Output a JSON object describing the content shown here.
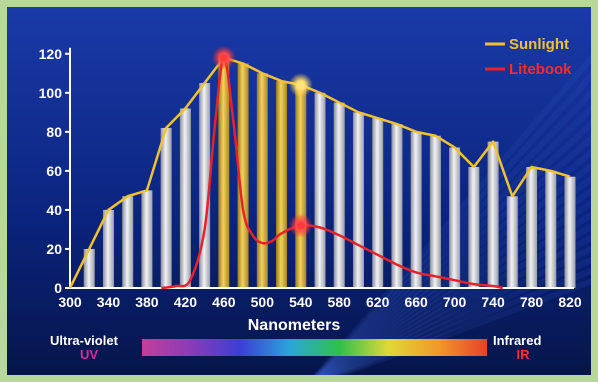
{
  "chart_data": {
    "type": "bar",
    "xlabel": "Nanometers",
    "ylabel": "",
    "ylim": [
      0,
      125
    ],
    "xlim": [
      300,
      820
    ],
    "y_ticks": [
      "0",
      "20",
      "40",
      "60",
      "80",
      "100",
      "120"
    ],
    "x_ticks": [
      "300",
      "340",
      "380",
      "420",
      "460",
      "500",
      "540",
      "580",
      "620",
      "660",
      "700",
      "740",
      "780",
      "820"
    ],
    "categories": [
      320,
      340,
      360,
      380,
      400,
      420,
      440,
      460,
      480,
      500,
      520,
      540,
      560,
      580,
      600,
      620,
      640,
      660,
      680,
      700,
      720,
      740,
      760,
      780,
      800,
      820
    ],
    "highlighted": [
      460,
      480,
      500,
      520,
      540
    ],
    "series": [
      {
        "name": "Sunlight",
        "color": "#f2c12e",
        "kind": "bar_and_line",
        "x": [
          300,
          320,
          340,
          360,
          380,
          400,
          420,
          440,
          460,
          480,
          500,
          520,
          540,
          560,
          580,
          600,
          620,
          640,
          660,
          680,
          700,
          720,
          740,
          760,
          780,
          800,
          820
        ],
        "values": [
          0,
          20,
          40,
          47,
          50,
          82,
          92,
          105,
          118,
          115,
          110,
          106,
          104,
          100,
          95,
          90,
          87,
          84,
          80,
          78,
          72,
          62,
          75,
          47,
          62,
          60,
          57
        ]
      },
      {
        "name": "Litebook",
        "color": "#e8222a",
        "kind": "line",
        "x": [
          395,
          410,
          425,
          440,
          450,
          460,
          470,
          480,
          490,
          500,
          510,
          520,
          540,
          560,
          580,
          600,
          620,
          640,
          660,
          680,
          700,
          720,
          740,
          750
        ],
        "values": [
          0,
          1,
          4,
          30,
          80,
          118,
          85,
          40,
          27,
          23,
          24,
          28,
          32,
          31,
          27,
          22,
          17,
          12,
          8,
          6,
          4,
          2,
          1,
          0
        ]
      }
    ],
    "markers": [
      {
        "series": "Litebook",
        "x": 460,
        "y": 118,
        "color": "#ff3a3a"
      },
      {
        "series": "Sunlight",
        "x": 540,
        "y": 104,
        "color": "#ffe27a"
      },
      {
        "series": "Litebook",
        "x": 540,
        "y": 32,
        "color": "#ff3a3a"
      }
    ],
    "legend_position": "top-right",
    "grid": false
  },
  "spectrum": {
    "left_label": "Ultra-violet",
    "left_sub": "UV",
    "right_label": "Infrared",
    "right_sub": "IR",
    "colors": [
      "#c0409a",
      "#8a3bb8",
      "#3b3fd6",
      "#2aa6d8",
      "#2fbf4c",
      "#e0d83a",
      "#f09a2a",
      "#e8402a"
    ]
  }
}
